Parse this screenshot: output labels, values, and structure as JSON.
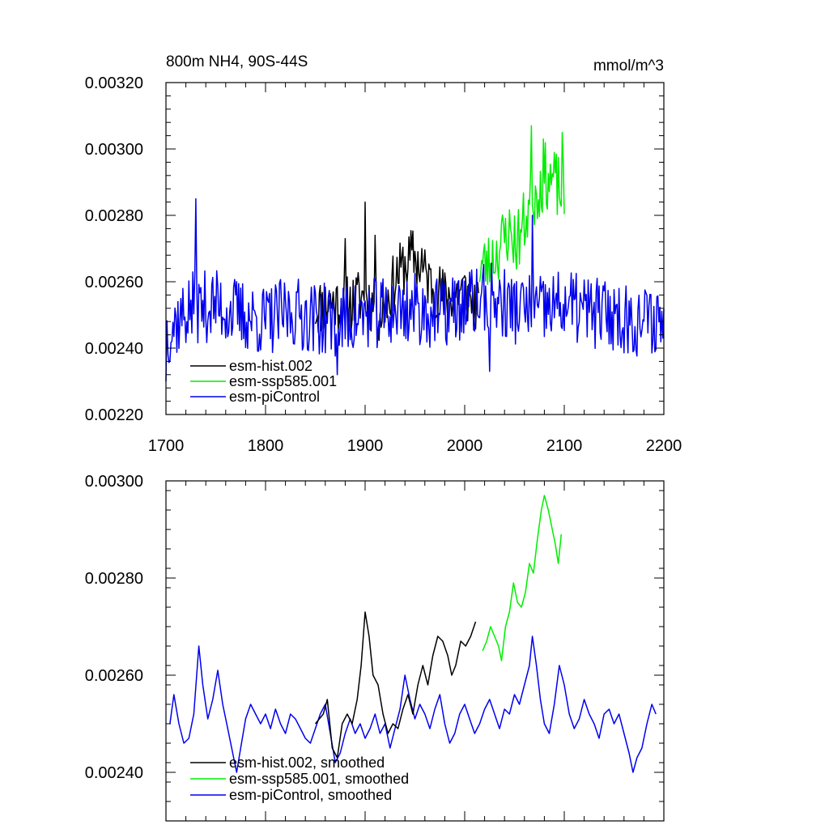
{
  "chart_data": [
    {
      "type": "line",
      "title_left": "800m NH4, 90S-44S",
      "title_right": "mmol/m^3",
      "xlim": [
        1700,
        2200
      ],
      "ylim": [
        0.0022,
        0.0032
      ],
      "x_ticks": [
        1700,
        1800,
        1900,
        2000,
        2100,
        2200
      ],
      "x_tick_labels": [
        "1700",
        "1800",
        "1900",
        "2000",
        "2100",
        "2200"
      ],
      "y_ticks": [
        0.0022,
        0.0024,
        0.0026,
        0.0028,
        0.003,
        0.0032
      ],
      "y_tick_labels": [
        "0.00220",
        "0.00240",
        "0.00260",
        "0.00280",
        "0.00300",
        "0.00320"
      ],
      "legend_position": "bottom-left",
      "series": [
        {
          "name": "esm-hist.002",
          "color": "#000000",
          "x_start": 1850,
          "x_end": 2014,
          "base": [
            0.00252,
            0.00254,
            0.00253,
            0.00256,
            0.0025,
            0.00262,
            0.00268,
            0.0026,
            0.00255,
            0.00258,
            0.00251
          ],
          "jitter": 9e-05,
          "spikes": [
            [
              1900,
              0.00284
            ],
            [
              1880,
              0.00273
            ],
            [
              1910,
              0.00274
            ],
            [
              1957,
              0.0027
            ]
          ],
          "seed": 11
        },
        {
          "name": "esm-ssp585.001",
          "color": "#00ee00",
          "x_start": 2015,
          "x_end": 2100,
          "base": [
            0.00265,
            0.00265,
            0.0027,
            0.00275,
            0.00272,
            0.0028,
            0.00287,
            0.00292,
            0.0029,
            0.00285
          ],
          "jitter": 0.0001,
          "spikes": [
            [
              2067,
              0.00307
            ],
            [
              2098,
              0.00305
            ],
            [
              2079,
              0.00303
            ]
          ],
          "seed": 23
        },
        {
          "name": "esm-piControl",
          "color": "#0000ee",
          "x_start": 1700,
          "x_end": 2200,
          "base": [
            0.00245,
            0.00252,
            0.00253,
            0.0025,
            0.00248,
            0.00251,
            0.00249,
            0.00248,
            0.0025,
            0.00251,
            0.00252,
            0.0025,
            0.00253,
            0.00255,
            0.00252,
            0.00251,
            0.00253,
            0.00251,
            0.0025,
            0.00248,
            0.00249
          ],
          "jitter": 0.00011,
          "spikes": [
            [
              1730,
              0.00285
            ],
            [
              1700,
              0.0023
            ],
            [
              1872,
              0.00232
            ],
            [
              2068,
              0.0028
            ],
            [
              2025,
              0.00233
            ]
          ],
          "seed": 37
        }
      ]
    },
    {
      "type": "line",
      "xlim": [
        1700,
        2200
      ],
      "ylim": [
        0.0023,
        0.003
      ],
      "x_ticks": [
        1700,
        1800,
        1900,
        2000,
        2100,
        2200
      ],
      "y_ticks": [
        0.0024,
        0.0026,
        0.0028,
        0.003
      ],
      "y_tick_labels": [
        "0.00240",
        "0.00260",
        "0.00280",
        "0.00300"
      ],
      "legend_position": "bottom-left",
      "series": [
        {
          "name": "esm-hist.002, smoothed",
          "color": "#000000",
          "points": [
            [
              1850,
              0.0025
            ],
            [
              1858,
              0.00252
            ],
            [
              1862,
              0.00255
            ],
            [
              1867,
              0.00245
            ],
            [
              1872,
              0.00243
            ],
            [
              1877,
              0.0025
            ],
            [
              1882,
              0.00252
            ],
            [
              1887,
              0.0025
            ],
            [
              1892,
              0.00255
            ],
            [
              1896,
              0.00262
            ],
            [
              1900,
              0.00273
            ],
            [
              1904,
              0.00268
            ],
            [
              1908,
              0.0026
            ],
            [
              1913,
              0.00258
            ],
            [
              1918,
              0.00252
            ],
            [
              1923,
              0.00248
            ],
            [
              1928,
              0.0025
            ],
            [
              1933,
              0.00249
            ],
            [
              1938,
              0.00253
            ],
            [
              1943,
              0.00256
            ],
            [
              1948,
              0.00252
            ],
            [
              1953,
              0.00258
            ],
            [
              1958,
              0.00262
            ],
            [
              1963,
              0.00258
            ],
            [
              1968,
              0.00264
            ],
            [
              1973,
              0.00268
            ],
            [
              1978,
              0.00267
            ],
            [
              1983,
              0.00264
            ],
            [
              1987,
              0.0026
            ],
            [
              1991,
              0.00262
            ],
            [
              1996,
              0.00267
            ],
            [
              2001,
              0.00266
            ],
            [
              2006,
              0.00268
            ],
            [
              2011,
              0.00271
            ]
          ]
        },
        {
          "name": "esm-ssp585.001, smoothed",
          "color": "#00ee00",
          "points": [
            [
              2018,
              0.00265
            ],
            [
              2022,
              0.00267
            ],
            [
              2026,
              0.0027
            ],
            [
              2030,
              0.00268
            ],
            [
              2034,
              0.00266
            ],
            [
              2037,
              0.00263
            ],
            [
              2041,
              0.0027
            ],
            [
              2045,
              0.00273
            ],
            [
              2049,
              0.00279
            ],
            [
              2053,
              0.00275
            ],
            [
              2057,
              0.00274
            ],
            [
              2061,
              0.00277
            ],
            [
              2065,
              0.00283
            ],
            [
              2069,
              0.00281
            ],
            [
              2073,
              0.00288
            ],
            [
              2077,
              0.00294
            ],
            [
              2080,
              0.00297
            ],
            [
              2084,
              0.00294
            ],
            [
              2088,
              0.0029
            ],
            [
              2091,
              0.00287
            ],
            [
              2094,
              0.00283
            ],
            [
              2097,
              0.00289
            ]
          ]
        },
        {
          "name": "esm-piControl, smoothed",
          "color": "#0000ee",
          "points": [
            [
              1704,
              0.0025
            ],
            [
              1708,
              0.00256
            ],
            [
              1713,
              0.0025
            ],
            [
              1718,
              0.00246
            ],
            [
              1723,
              0.00247
            ],
            [
              1728,
              0.00252
            ],
            [
              1733,
              0.00266
            ],
            [
              1737,
              0.00258
            ],
            [
              1742,
              0.00251
            ],
            [
              1747,
              0.00255
            ],
            [
              1752,
              0.00261
            ],
            [
              1757,
              0.00254
            ],
            [
              1762,
              0.00249
            ],
            [
              1767,
              0.00244
            ],
            [
              1771,
              0.0024
            ],
            [
              1775,
              0.00245
            ],
            [
              1780,
              0.00251
            ],
            [
              1785,
              0.00254
            ],
            [
              1790,
              0.00252
            ],
            [
              1795,
              0.0025
            ],
            [
              1800,
              0.00252
            ],
            [
              1805,
              0.00249
            ],
            [
              1810,
              0.00253
            ],
            [
              1815,
              0.0025
            ],
            [
              1820,
              0.00248
            ],
            [
              1825,
              0.00252
            ],
            [
              1830,
              0.00251
            ],
            [
              1835,
              0.00249
            ],
            [
              1840,
              0.00247
            ],
            [
              1845,
              0.00246
            ],
            [
              1850,
              0.00249
            ],
            [
              1855,
              0.00252
            ],
            [
              1860,
              0.00254
            ],
            [
              1865,
              0.00248
            ],
            [
              1870,
              0.00242
            ],
            [
              1875,
              0.00244
            ],
            [
              1880,
              0.00248
            ],
            [
              1885,
              0.00251
            ],
            [
              1890,
              0.00248
            ],
            [
              1895,
              0.0025
            ],
            [
              1900,
              0.00247
            ],
            [
              1905,
              0.00249
            ],
            [
              1910,
              0.00252
            ],
            [
              1915,
              0.00248
            ],
            [
              1920,
              0.0025
            ],
            [
              1925,
              0.00245
            ],
            [
              1930,
              0.00249
            ],
            [
              1935,
              0.00253
            ],
            [
              1940,
              0.0026
            ],
            [
              1945,
              0.00255
            ],
            [
              1950,
              0.00251
            ],
            [
              1955,
              0.00254
            ],
            [
              1960,
              0.00252
            ],
            [
              1965,
              0.00249
            ],
            [
              1970,
              0.00253
            ],
            [
              1975,
              0.00256
            ],
            [
              1980,
              0.0025
            ],
            [
              1985,
              0.00246
            ],
            [
              1990,
              0.00248
            ],
            [
              1995,
              0.00252
            ],
            [
              2000,
              0.00254
            ],
            [
              2005,
              0.00251
            ],
            [
              2010,
              0.00248
            ],
            [
              2015,
              0.0025
            ],
            [
              2020,
              0.00253
            ],
            [
              2025,
              0.00255
            ],
            [
              2030,
              0.00252
            ],
            [
              2035,
              0.00249
            ],
            [
              2040,
              0.00253
            ],
            [
              2045,
              0.00252
            ],
            [
              2050,
              0.00256
            ],
            [
              2055,
              0.00254
            ],
            [
              2060,
              0.00258
            ],
            [
              2065,
              0.00262
            ],
            [
              2068,
              0.00268
            ],
            [
              2072,
              0.00262
            ],
            [
              2076,
              0.00255
            ],
            [
              2080,
              0.0025
            ],
            [
              2085,
              0.00248
            ],
            [
              2090,
              0.00254
            ],
            [
              2095,
              0.00262
            ],
            [
              2100,
              0.00258
            ],
            [
              2105,
              0.00252
            ],
            [
              2110,
              0.00249
            ],
            [
              2115,
              0.00251
            ],
            [
              2120,
              0.00255
            ],
            [
              2125,
              0.00252
            ],
            [
              2130,
              0.0025
            ],
            [
              2135,
              0.00247
            ],
            [
              2140,
              0.00252
            ],
            [
              2145,
              0.00253
            ],
            [
              2150,
              0.0025
            ],
            [
              2155,
              0.00252
            ],
            [
              2160,
              0.00248
            ],
            [
              2165,
              0.00244
            ],
            [
              2169,
              0.0024
            ],
            [
              2173,
              0.00243
            ],
            [
              2178,
              0.00245
            ],
            [
              2183,
              0.0025
            ],
            [
              2188,
              0.00254
            ],
            [
              2192,
              0.00252
            ]
          ]
        }
      ]
    }
  ]
}
